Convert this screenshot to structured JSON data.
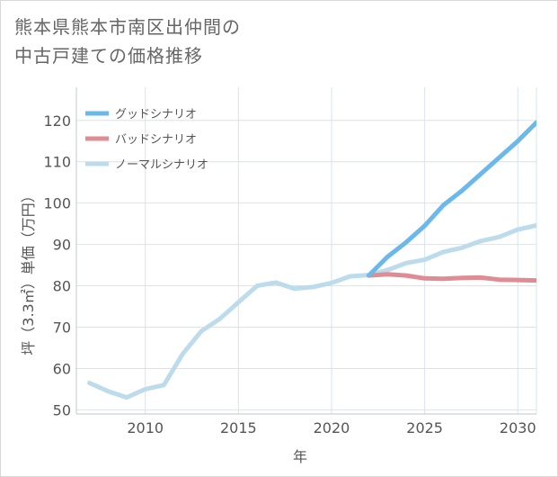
{
  "title": {
    "line1": "熊本県熊本市南区出仲間の",
    "line2": "中古戸建ての価格推移"
  },
  "chart_data": {
    "type": "line",
    "xlabel": "年",
    "ylabel": "坪（3.3㎡）単価（万円）",
    "xlim": [
      2006.3,
      2031
    ],
    "ylim": [
      49,
      128
    ],
    "xticks": [
      2010,
      2015,
      2020,
      2025,
      2030
    ],
    "yticks": [
      50,
      60,
      70,
      80,
      90,
      100,
      110,
      120
    ],
    "grid": true,
    "legend_position": "top-left",
    "series": [
      {
        "name": "グッドシナリオ",
        "color": "#6bb8ea",
        "x": [
          2022,
          2023,
          2024,
          2025,
          2026,
          2027,
          2028,
          2029,
          2030,
          2031
        ],
        "y": [
          82.5,
          87.0,
          90.5,
          94.5,
          99.5,
          103.0,
          107.0,
          111.0,
          115.0,
          119.5
        ]
      },
      {
        "name": "バッドシナリオ",
        "color": "#e08c94",
        "x": [
          2022,
          2023,
          2024,
          2025,
          2026,
          2027,
          2028,
          2029,
          2030,
          2031
        ],
        "y": [
          82.5,
          82.8,
          82.5,
          81.8,
          81.7,
          81.9,
          82.0,
          81.5,
          81.4,
          81.3
        ]
      },
      {
        "name": "ノーマルシナリオ",
        "color": "#bcdcec",
        "x": [
          2007,
          2008,
          2009,
          2010,
          2011,
          2012,
          2013,
          2014,
          2015,
          2016,
          2017,
          2018,
          2019,
          2020,
          2021,
          2022,
          2023,
          2024,
          2025,
          2026,
          2027,
          2028,
          2029,
          2030,
          2031
        ],
        "y": [
          56.5,
          54.5,
          53.0,
          55.0,
          56.0,
          63.5,
          69.0,
          72.0,
          76.0,
          80.0,
          80.8,
          79.3,
          79.7,
          80.7,
          82.3,
          82.6,
          83.8,
          85.5,
          86.3,
          88.2,
          89.2,
          90.8,
          91.8,
          93.6,
          94.6
        ]
      }
    ]
  }
}
